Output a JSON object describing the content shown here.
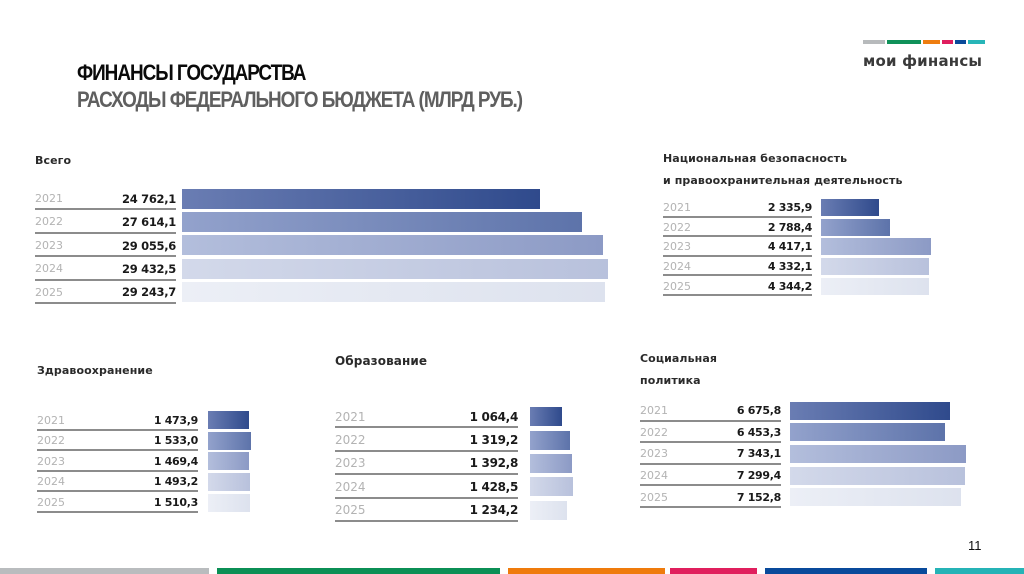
{
  "header": {
    "title": "ФИНАНСЫ ГОСУДАРСТВА",
    "subtitle": "РАСХОДЫ ФЕДЕРАЛЬНОГО БЮДЖЕТА (МЛРД РУБ.)"
  },
  "logo": {
    "text": "мои финансы",
    "stripe_colors": [
      "#b7babc",
      "#0f9159",
      "#ee7d0f",
      "#df1e5e",
      "#0a4b9a",
      "#27b5b8"
    ]
  },
  "page_number": "11",
  "footer": {
    "stripe_colors": [
      "#b9bcbe",
      "#0b8f55",
      "#ef7b0c",
      "#e01f5d",
      "#094a9b",
      "#25b3b6"
    ]
  },
  "bar_colors": [
    "#2f4a8c",
    "#5d73aa",
    "#8c9ac5",
    "#b8c1dc",
    "#dde2ee"
  ],
  "sections": {
    "total": {
      "title": "Всего",
      "rows": [
        {
          "year": "2021",
          "value": "24 762,1"
        },
        {
          "year": "2022",
          "value": "27 614,1"
        },
        {
          "year": "2023",
          "value": "29 055,6"
        },
        {
          "year": "2024",
          "value": "29 432,5"
        },
        {
          "year": "2025",
          "value": "29 243,7"
        }
      ]
    },
    "security": {
      "title_line1": "Национальная безопасность",
      "title_line2": "и правоохранительная деятельность",
      "rows": [
        {
          "year": "2021",
          "value": "2 335,9"
        },
        {
          "year": "2022",
          "value": "2 788,4"
        },
        {
          "year": "2023",
          "value": "4 417,1"
        },
        {
          "year": "2024",
          "value": "4 332,1"
        },
        {
          "year": "2025",
          "value": "4 344,2"
        }
      ]
    },
    "health": {
      "title": "Здравоохранение",
      "rows": [
        {
          "year": "2021",
          "value": "1 473,9"
        },
        {
          "year": "2022",
          "value": "1 533,0"
        },
        {
          "year": "2023",
          "value": "1 469,4"
        },
        {
          "year": "2024",
          "value": "1 493,2"
        },
        {
          "year": "2025",
          "value": "1 510,3"
        }
      ]
    },
    "education": {
      "title": "Образование",
      "rows": [
        {
          "year": "2021",
          "value": "1 064,4"
        },
        {
          "year": "2022",
          "value": "1 319,2"
        },
        {
          "year": "2023",
          "value": "1 392,8"
        },
        {
          "year": "2024",
          "value": "1 428,5"
        },
        {
          "year": "2025",
          "value": "1 234,2"
        }
      ]
    },
    "social": {
      "title_line1": "Социальная",
      "title_line2": "политика",
      "rows": [
        {
          "year": "2021",
          "value": "6 675,8"
        },
        {
          "year": "2022",
          "value": "6 453,3"
        },
        {
          "year": "2023",
          "value": "7 343,1"
        },
        {
          "year": "2024",
          "value": "7 299,4"
        },
        {
          "year": "2025",
          "value": "7 152,8"
        }
      ]
    }
  },
  "chart_data": [
    {
      "type": "bar",
      "title": "Всего",
      "categories": [
        "2021",
        "2022",
        "2023",
        "2024",
        "2025"
      ],
      "values": [
        24762.1,
        27614.1,
        29055.6,
        29432.5,
        29243.7
      ],
      "xlabel": "",
      "ylabel": "млрд руб.",
      "orientation": "horizontal"
    },
    {
      "type": "bar",
      "title": "Национальная безопасность и правоохранительная деятельность",
      "categories": [
        "2021",
        "2022",
        "2023",
        "2024",
        "2025"
      ],
      "values": [
        2335.9,
        2788.4,
        4417.1,
        4332.1,
        4344.2
      ],
      "xlabel": "",
      "ylabel": "млрд руб.",
      "orientation": "horizontal"
    },
    {
      "type": "bar",
      "title": "Здравоохранение",
      "categories": [
        "2021",
        "2022",
        "2023",
        "2024",
        "2025"
      ],
      "values": [
        1473.9,
        1533.0,
        1469.4,
        1493.2,
        1510.3
      ],
      "xlabel": "",
      "ylabel": "млрд руб.",
      "orientation": "horizontal"
    },
    {
      "type": "bar",
      "title": "Образование",
      "categories": [
        "2021",
        "2022",
        "2023",
        "2024",
        "2025"
      ],
      "values": [
        1064.4,
        1319.2,
        1392.8,
        1428.5,
        1234.2
      ],
      "xlabel": "",
      "ylabel": "млрд руб.",
      "orientation": "horizontal"
    },
    {
      "type": "bar",
      "title": "Социальная политика",
      "categories": [
        "2021",
        "2022",
        "2023",
        "2024",
        "2025"
      ],
      "values": [
        6675.8,
        6453.3,
        7343.1,
        7299.4,
        7152.8
      ],
      "xlabel": "",
      "ylabel": "млрд руб.",
      "orientation": "horizontal"
    }
  ]
}
